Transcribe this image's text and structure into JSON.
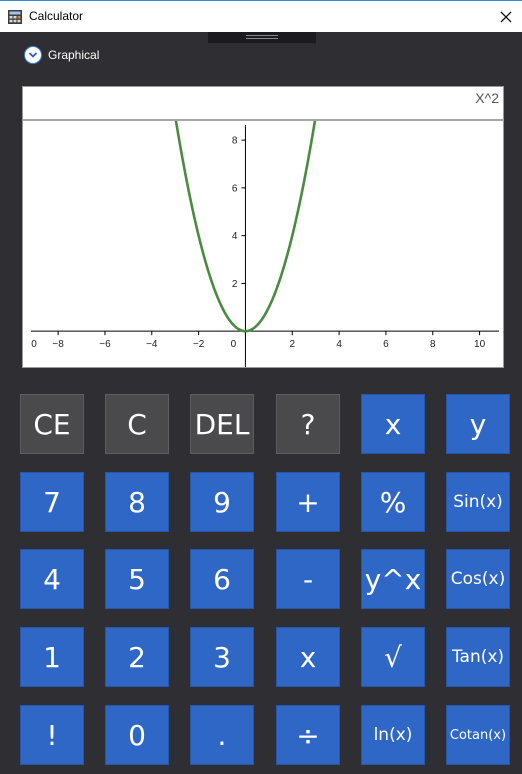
{
  "window": {
    "title": "Calculator"
  },
  "mode": {
    "label": "Graphical"
  },
  "graph": {
    "expression": "X^2",
    "x_ticks": [
      "0",
      "−8",
      "−6",
      "−4",
      "−2",
      "0",
      "2",
      "4",
      "6",
      "8",
      "10"
    ],
    "y_ticks": [
      "2",
      "4",
      "6",
      "8"
    ],
    "curve_color": "#4a8c3f"
  },
  "chart_data": {
    "type": "line",
    "series": [
      {
        "x": [
          -3.0,
          -2.5,
          -2.0,
          -1.5,
          -1.0,
          -0.5,
          0.0,
          0.5,
          1.0,
          1.5,
          2.0,
          2.5,
          3.0
        ],
        "y": [
          9.0,
          6.25,
          4.0,
          2.25,
          1.0,
          0.25,
          0.0,
          0.25,
          1.0,
          2.25,
          4.0,
          6.25,
          9.0
        ]
      }
    ],
    "xlim": [
      -9.5,
      11
    ],
    "ylim": [
      -1.5,
      8.8
    ],
    "grid": false
  },
  "keypad": {
    "rows": [
      [
        {
          "label": "CE",
          "style": "dark",
          "name": "ce-button"
        },
        {
          "label": "C",
          "style": "dark",
          "name": "clear-button"
        },
        {
          "label": "DEL",
          "style": "dark",
          "name": "delete-button"
        },
        {
          "label": "?",
          "style": "dark",
          "name": "help-button"
        },
        {
          "label": "x",
          "style": "blue",
          "name": "variable-x-button"
        },
        {
          "label": "y",
          "style": "blue",
          "name": "variable-y-button"
        }
      ],
      [
        {
          "label": "7",
          "style": "blue",
          "name": "digit-7-button"
        },
        {
          "label": "8",
          "style": "blue",
          "name": "digit-8-button"
        },
        {
          "label": "9",
          "style": "blue",
          "name": "digit-9-button"
        },
        {
          "label": "+",
          "style": "blue",
          "name": "add-button"
        },
        {
          "label": "%",
          "style": "blue",
          "name": "percent-button"
        },
        {
          "label": "Sin(x)",
          "style": "blue",
          "name": "sin-button",
          "size": "fn"
        }
      ],
      [
        {
          "label": "4",
          "style": "blue",
          "name": "digit-4-button"
        },
        {
          "label": "5",
          "style": "blue",
          "name": "digit-5-button"
        },
        {
          "label": "6",
          "style": "blue",
          "name": "digit-6-button"
        },
        {
          "label": "-",
          "style": "blue",
          "name": "subtract-button"
        },
        {
          "label": "y^x",
          "style": "blue",
          "name": "power-button"
        },
        {
          "label": "Cos(x)",
          "style": "blue",
          "name": "cos-button",
          "size": "fn"
        }
      ],
      [
        {
          "label": "1",
          "style": "blue",
          "name": "digit-1-button"
        },
        {
          "label": "2",
          "style": "blue",
          "name": "digit-2-button"
        },
        {
          "label": "3",
          "style": "blue",
          "name": "digit-3-button"
        },
        {
          "label": "x",
          "style": "blue",
          "name": "multiply-button"
        },
        {
          "label": "√",
          "style": "blue",
          "name": "sqrt-button"
        },
        {
          "label": "Tan(x)",
          "style": "blue",
          "name": "tan-button",
          "size": "fn"
        }
      ],
      [
        {
          "label": "!",
          "style": "blue",
          "name": "factorial-button"
        },
        {
          "label": "0",
          "style": "blue",
          "name": "digit-0-button"
        },
        {
          "label": ".",
          "style": "blue",
          "name": "decimal-button"
        },
        {
          "label": "÷",
          "style": "blue",
          "name": "divide-button"
        },
        {
          "label": "ln(x)",
          "style": "blue",
          "name": "ln-button",
          "size": "fn"
        },
        {
          "label": "Cotan(x)",
          "style": "blue",
          "name": "cotan-button",
          "size": "fn-sm"
        }
      ]
    ]
  }
}
